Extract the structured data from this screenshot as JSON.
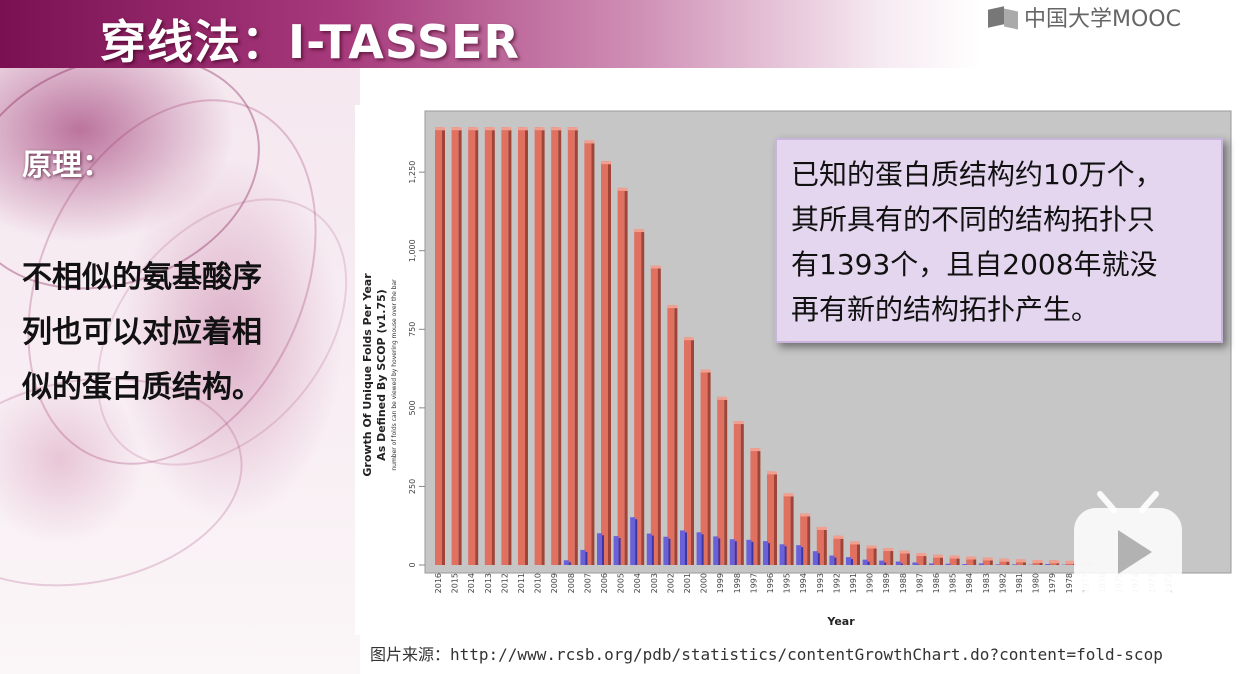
{
  "slide": {
    "title": "穿线法：I-TASSER",
    "logo_text": "中国大学MOOC",
    "principle_label": "原理：",
    "principle_lines": [
      "不相似的氨基酸序",
      "列也可以对应着相",
      "似的蛋白质结构。"
    ],
    "callout_lines": [
      "已知的蛋白质结构约10万个，",
      "其所具有的不同的结构拓扑只",
      "有1393个，且自2008年就没",
      "再有新的结构拓扑产生。"
    ],
    "source": "图片来源：http://www.rcsb.org/pdb/statistics/contentGrowthChart.do?content=fold-scop",
    "play_icon": "play-icon"
  },
  "chart_data": {
    "type": "bar",
    "xlabel": "Year",
    "ylabel": "Growth Of Unique Folds Per Year",
    "ylabel_line2": "As Defined By SCOP (v1.75)",
    "ylabel_note": "number of folds can be viewed by hovering mouse over the bar",
    "ylim": [
      0,
      1400
    ],
    "yticks": [
      0,
      250,
      500,
      750,
      1000,
      1250
    ],
    "grid": false,
    "colors": {
      "total": "#e07060",
      "yearly": "#6a60d8",
      "plot_bg": "#c6c6c6"
    },
    "categories": [
      "2016",
      "2015",
      "2014",
      "2013",
      "2012",
      "2011",
      "2010",
      "2009",
      "2008",
      "2007",
      "2006",
      "2005",
      "2004",
      "2003",
      "2002",
      "2001",
      "2000",
      "1999",
      "1998",
      "1997",
      "1996",
      "1995",
      "1994",
      "1993",
      "1992",
      "1991",
      "1990",
      "1989",
      "1988",
      "1987",
      "1986",
      "1985",
      "1984",
      "1983",
      "1982",
      "1981",
      "1980",
      "1979",
      "1978",
      "1977",
      "1976",
      "1975",
      "1974",
      "1973",
      "1972"
    ],
    "series": [
      {
        "values": [
          1393,
          1393,
          1393,
          1393,
          1393,
          1393,
          1393,
          1393,
          1393,
          1351,
          1285,
          1200,
          1069,
          953,
          827,
          725,
          622,
          535,
          458,
          372,
          298,
          228,
          164,
          121,
          93,
          75,
          62,
          54,
          46,
          38,
          33,
          30,
          27,
          24,
          20,
          18,
          16,
          15,
          13,
          12,
          10,
          9,
          8,
          6,
          5
        ]
      },
      {
        "values": [
          0,
          0,
          0,
          0,
          0,
          0,
          0,
          0,
          15,
          48,
          101,
          92,
          152,
          100,
          90,
          110,
          104,
          91,
          82,
          80,
          76,
          66,
          63,
          44,
          30,
          25,
          17,
          14,
          11,
          8,
          5,
          4,
          3,
          5,
          2,
          2,
          1,
          3,
          1,
          1,
          0,
          0,
          0,
          0,
          0
        ]
      }
    ]
  }
}
